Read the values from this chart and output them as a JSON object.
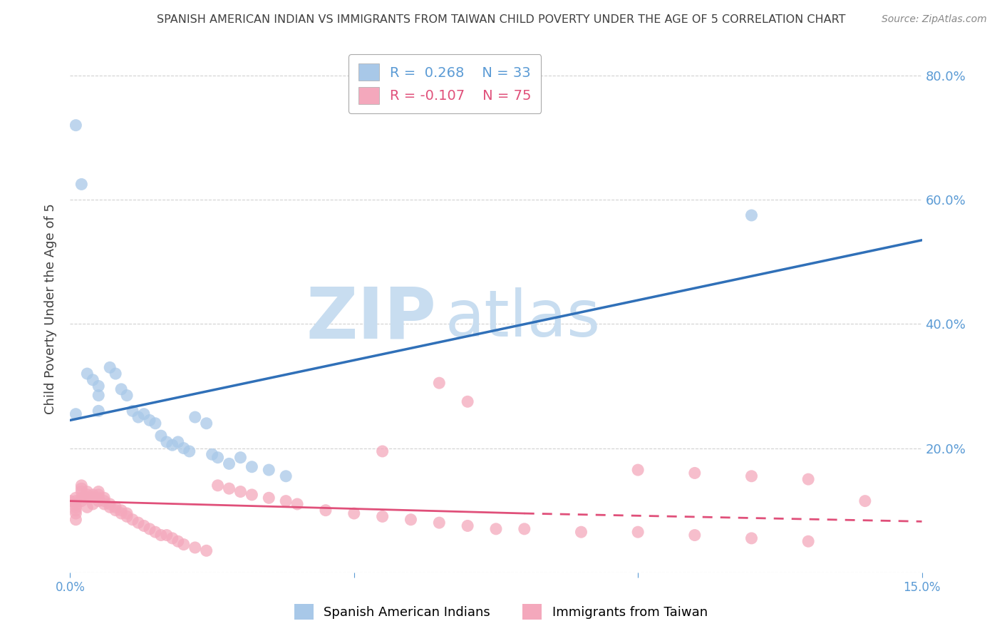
{
  "title": "SPANISH AMERICAN INDIAN VS IMMIGRANTS FROM TAIWAN CHILD POVERTY UNDER THE AGE OF 5 CORRELATION CHART",
  "source": "Source: ZipAtlas.com",
  "ylabel": "Child Poverty Under the Age of 5",
  "xlim": [
    0.0,
    0.15
  ],
  "ylim": [
    0.0,
    0.85
  ],
  "blue_r": "0.268",
  "blue_n": "33",
  "pink_r": "-0.107",
  "pink_n": "75",
  "legend_label_blue": "Spanish American Indians",
  "legend_label_pink": "Immigrants from Taiwan",
  "blue_fill_color": "#a8c8e8",
  "pink_fill_color": "#f4a8bc",
  "blue_line_color": "#3070b8",
  "pink_line_color": "#e0507a",
  "grid_color": "#cccccc",
  "title_color": "#404040",
  "right_axis_color": "#5b9bd5",
  "tick_color": "#5b9bd5",
  "background_color": "#ffffff",
  "watermark_color": "#d8e8f4",
  "blue_trend": [
    0.0,
    0.15,
    0.245,
    0.535
  ],
  "pink_trend_solid": [
    0.0,
    0.08,
    0.115,
    0.095
  ],
  "pink_trend_dashed": [
    0.08,
    0.15,
    0.095,
    0.082
  ],
  "blue_x": [
    0.001,
    0.001,
    0.002,
    0.003,
    0.004,
    0.005,
    0.005,
    0.005,
    0.007,
    0.008,
    0.009,
    0.01,
    0.011,
    0.012,
    0.013,
    0.014,
    0.015,
    0.016,
    0.017,
    0.018,
    0.019,
    0.02,
    0.021,
    0.022,
    0.024,
    0.025,
    0.026,
    0.028,
    0.03,
    0.032,
    0.035,
    0.12,
    0.038
  ],
  "blue_y": [
    0.72,
    0.255,
    0.625,
    0.32,
    0.31,
    0.3,
    0.285,
    0.26,
    0.33,
    0.32,
    0.295,
    0.285,
    0.26,
    0.25,
    0.255,
    0.245,
    0.24,
    0.22,
    0.21,
    0.205,
    0.21,
    0.2,
    0.195,
    0.25,
    0.24,
    0.19,
    0.185,
    0.175,
    0.185,
    0.17,
    0.165,
    0.575,
    0.155
  ],
  "pink_x": [
    0.0,
    0.001,
    0.001,
    0.001,
    0.001,
    0.001,
    0.001,
    0.001,
    0.002,
    0.002,
    0.002,
    0.002,
    0.002,
    0.003,
    0.003,
    0.003,
    0.003,
    0.004,
    0.004,
    0.004,
    0.005,
    0.005,
    0.005,
    0.005,
    0.006,
    0.006,
    0.006,
    0.007,
    0.007,
    0.008,
    0.008,
    0.009,
    0.009,
    0.01,
    0.01,
    0.011,
    0.012,
    0.013,
    0.014,
    0.015,
    0.016,
    0.017,
    0.018,
    0.019,
    0.02,
    0.022,
    0.024,
    0.026,
    0.028,
    0.03,
    0.032,
    0.035,
    0.038,
    0.04,
    0.045,
    0.05,
    0.055,
    0.06,
    0.065,
    0.07,
    0.075,
    0.08,
    0.09,
    0.1,
    0.11,
    0.12,
    0.13,
    0.14,
    0.065,
    0.07,
    0.055,
    0.1,
    0.11,
    0.12,
    0.13
  ],
  "pink_y": [
    0.115,
    0.12,
    0.115,
    0.11,
    0.105,
    0.1,
    0.095,
    0.085,
    0.14,
    0.135,
    0.13,
    0.12,
    0.115,
    0.13,
    0.125,
    0.12,
    0.105,
    0.125,
    0.12,
    0.11,
    0.13,
    0.125,
    0.12,
    0.115,
    0.12,
    0.115,
    0.11,
    0.11,
    0.105,
    0.105,
    0.1,
    0.1,
    0.095,
    0.095,
    0.09,
    0.085,
    0.08,
    0.075,
    0.07,
    0.065,
    0.06,
    0.06,
    0.055,
    0.05,
    0.045,
    0.04,
    0.035,
    0.14,
    0.135,
    0.13,
    0.125,
    0.12,
    0.115,
    0.11,
    0.1,
    0.095,
    0.09,
    0.085,
    0.08,
    0.075,
    0.07,
    0.07,
    0.065,
    0.065,
    0.06,
    0.055,
    0.05,
    0.115,
    0.305,
    0.275,
    0.195,
    0.165,
    0.16,
    0.155,
    0.15
  ]
}
